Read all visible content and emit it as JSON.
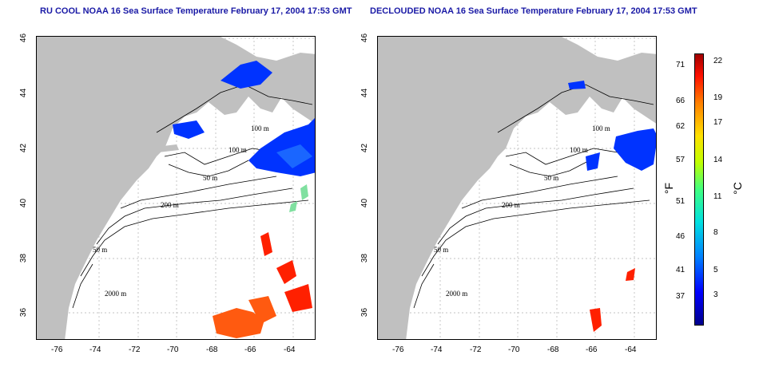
{
  "panels": [
    {
      "title": "RU COOL NOAA 16 Sea Surface Temperature February 17, 2004 17:53 GMT",
      "contour_labels": [
        "100 m",
        "100 m",
        "50 m",
        "200 m",
        "50 m",
        "2000 m"
      ]
    },
    {
      "title": "DECLOUDED NOAA 16 Sea Surface Temperature February 17, 2004 17:53 GMT",
      "contour_labels": [
        "100 m",
        "100 m",
        "50 m",
        "200 m",
        "50 m",
        "2000 m"
      ]
    }
  ],
  "x_ticks": [
    "-76",
    "-74",
    "-72",
    "-70",
    "-68",
    "-66",
    "-64"
  ],
  "y_ticks": [
    "46",
    "44",
    "42",
    "40",
    "38",
    "36"
  ],
  "colorbar": {
    "fahrenheit_ticks": [
      "71",
      "66",
      "62",
      "57",
      "51",
      "46",
      "41",
      "37"
    ],
    "celsius_ticks": [
      "22",
      "19",
      "17",
      "14",
      "11",
      "8",
      "5",
      "3"
    ],
    "f_unit": "°F",
    "c_unit": "°C"
  },
  "colors": {
    "land": "#c0c0c0",
    "title": "#1a1aa6",
    "cold": "#0000ff",
    "warm": "#ff2000"
  }
}
